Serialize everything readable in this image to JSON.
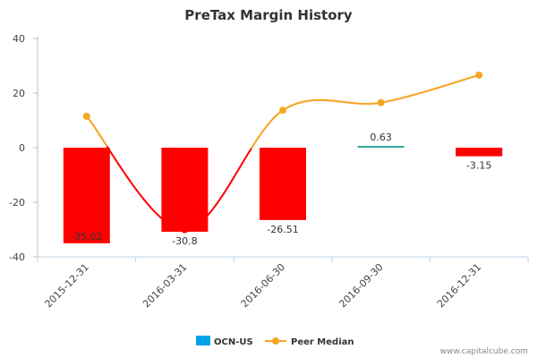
{
  "chart_data": {
    "type": "bar",
    "title": "PreTax Margin History",
    "categories": [
      "2015-12-31",
      "2016-03-31",
      "2016-06-30",
      "2016-09-30",
      "2016-12-31"
    ],
    "series": [
      {
        "name": "OCN-US",
        "kind": "bar",
        "values": [
          -35.02,
          -30.8,
          -26.51,
          0.63,
          -3.15
        ],
        "data_labels": [
          "-35.02",
          "-30.8",
          "-26.51",
          "0.63",
          "-3.15"
        ],
        "color_negative": "#ff0000",
        "color_positive": "#2aa198",
        "legend_color": "#00a2e8"
      },
      {
        "name": "Peer Median",
        "kind": "line",
        "values": [
          11.5,
          -30.0,
          13.7,
          16.5,
          26.6
        ],
        "color": "#f5a623",
        "negative_color": "#ff0000"
      }
    ],
    "ylim": [
      -40,
      40
    ],
    "yticks": [
      -40,
      -20,
      0,
      20,
      40
    ],
    "xlabel": "",
    "ylabel": "",
    "grid": false,
    "legend": "bottom-center"
  },
  "credits": "www.capitalcube.com"
}
